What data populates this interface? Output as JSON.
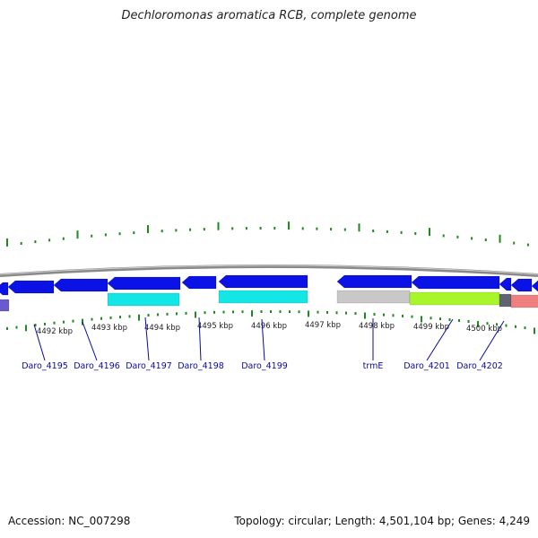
{
  "title": "Dechloromonas aromatica RCB, complete genome",
  "footer": {
    "accession_label": "Accession: ",
    "accession": "NC_007298",
    "topology_label": "Topology: ",
    "topology": "circular",
    "length_label": "; Length: ",
    "length": "4,501,104 bp",
    "genes_label": "; Genes: ",
    "genes": "4,249"
  },
  "scale_labels": [
    "4492 kbp",
    "4493 kbp",
    "4494 kbp",
    "4495 kbp",
    "4496 kbp",
    "4497 kbp",
    "4498 kbp",
    "4499 kbp",
    "4500 kbp"
  ],
  "gene_labels": [
    "Daro_4195",
    "Daro_4196",
    "Daro_4197",
    "Daro_4198",
    "Daro_4199",
    "trmE",
    "Daro_4201",
    "Daro_4202"
  ],
  "colors": {
    "gene_dark": "#0a12e6",
    "gene_cyan": "#14e6e6",
    "gene_grey": "#c8c8c8",
    "gene_lime": "#a8f52a",
    "gene_salmon": "#f08080",
    "gene_slate": "#606470",
    "gene_purple": "#6a5acd",
    "tick_green": "#1e8a1e",
    "label_blue": "#0a0aa0",
    "backbone": "#8a8a8a"
  }
}
